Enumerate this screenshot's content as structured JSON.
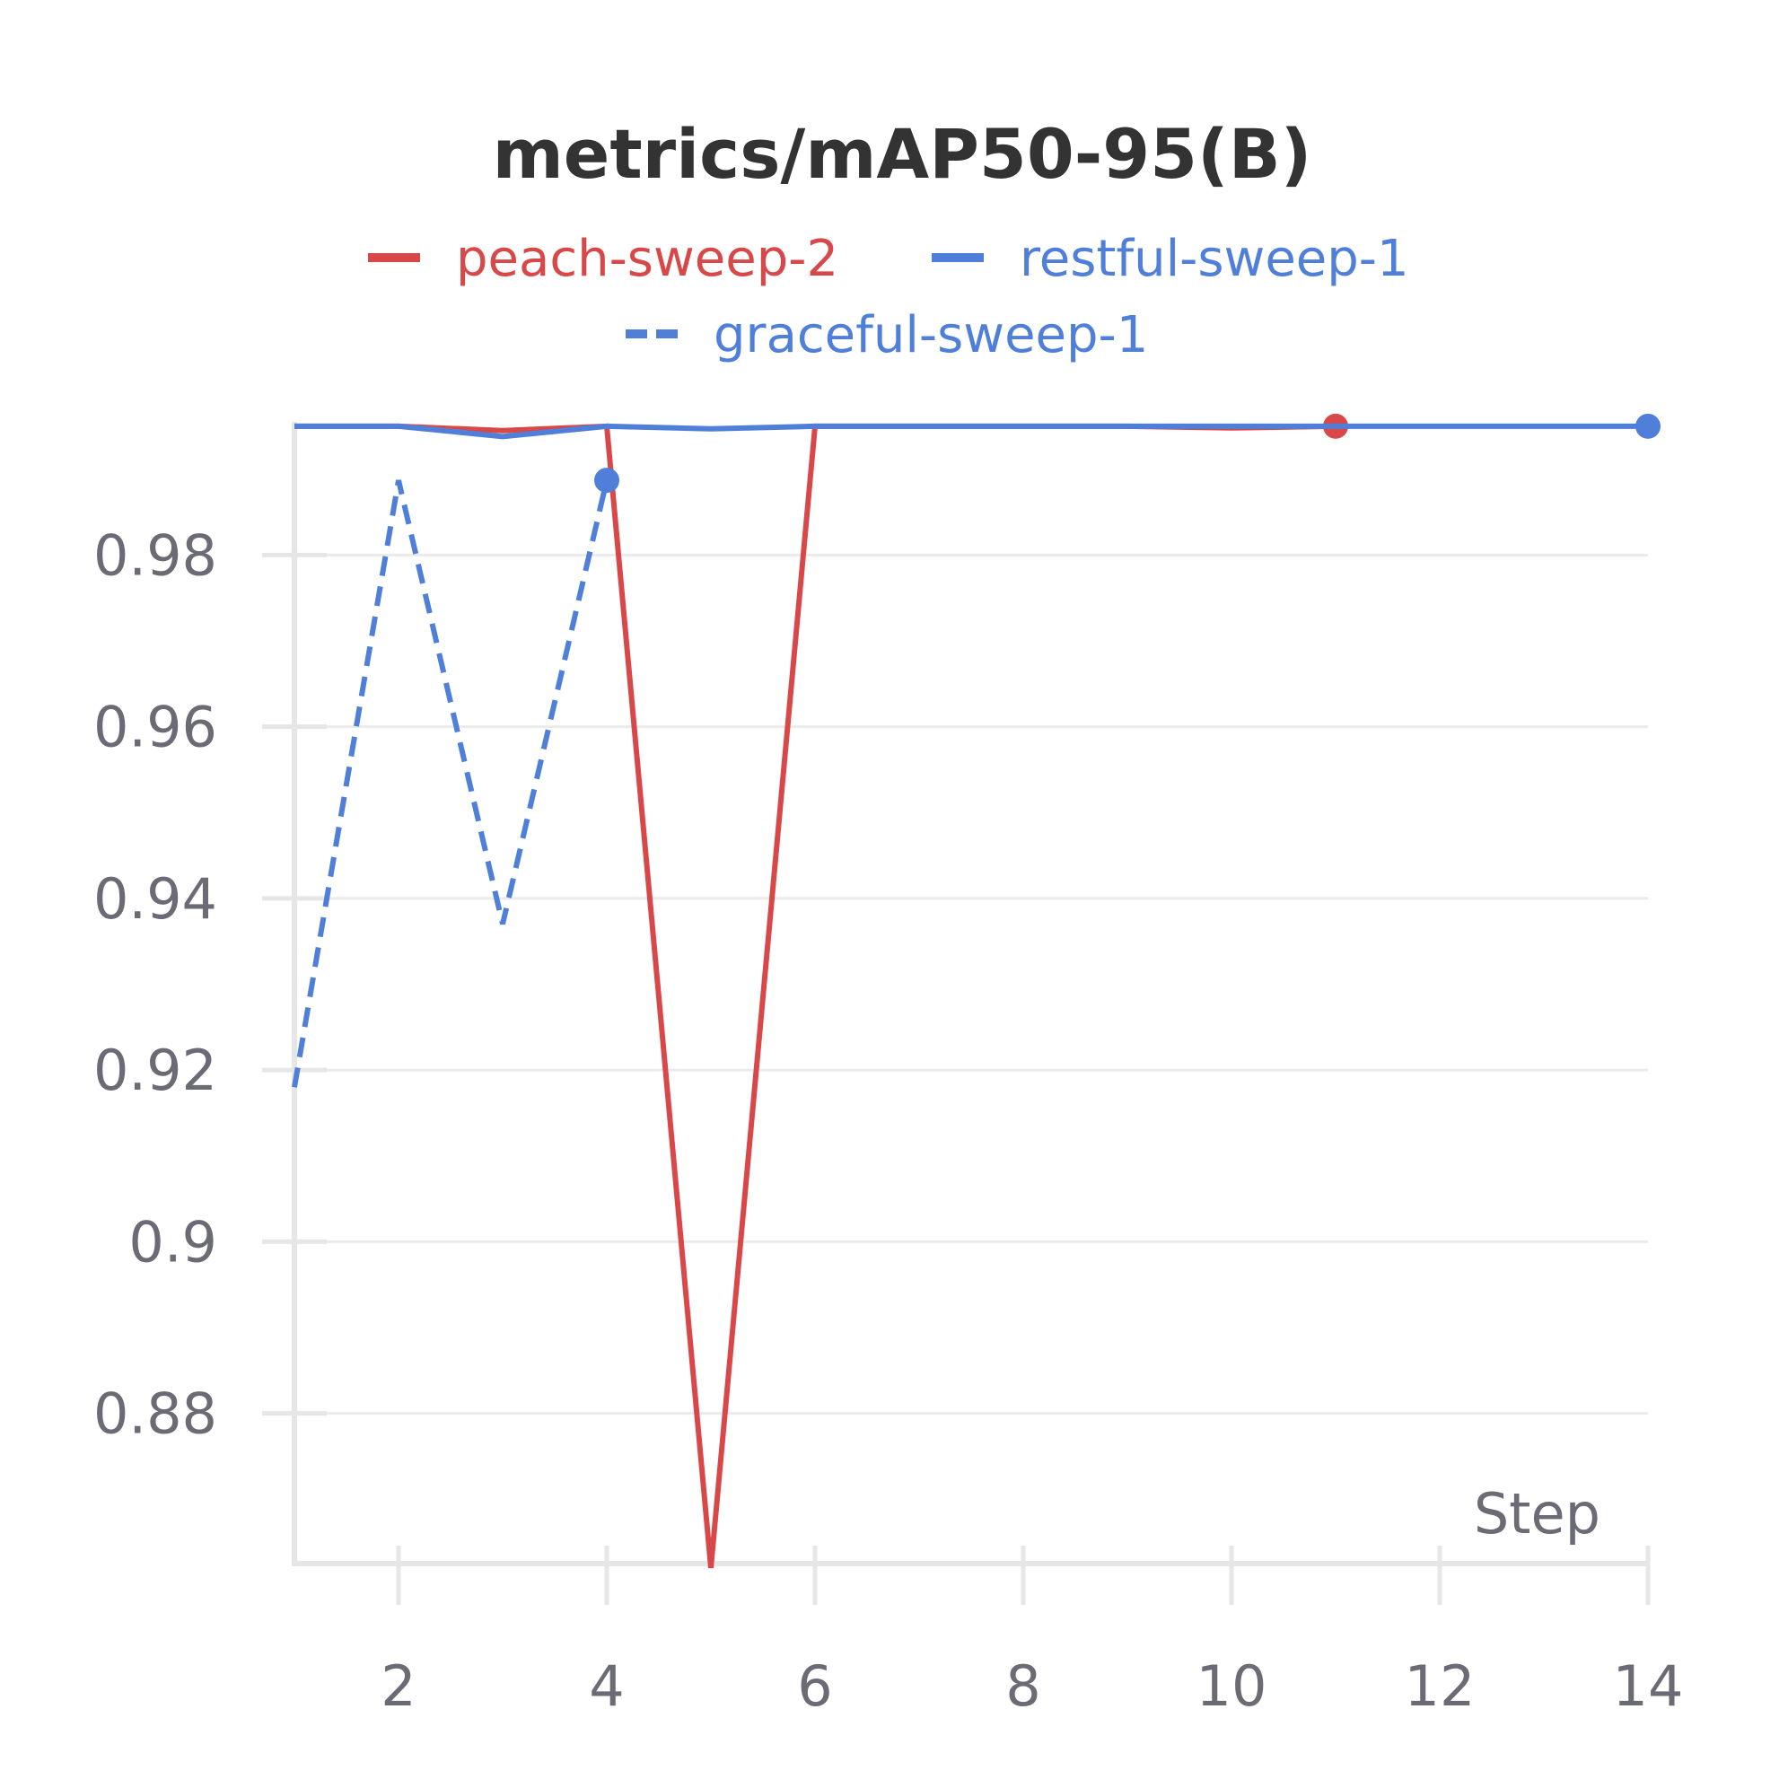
{
  "chart_data": {
    "type": "line",
    "title": "metrics/mAP50-95(B)",
    "xlabel": "Step",
    "ylabel": "",
    "xlim": [
      1,
      14
    ],
    "ylim": [
      0.8625,
      0.9953
    ],
    "x_ticks": [
      2,
      4,
      6,
      8,
      10,
      12,
      14
    ],
    "y_ticks": [
      0.88,
      0.9,
      0.92,
      0.94,
      0.96,
      0.98
    ],
    "y_tick_labels": [
      "0.88",
      "0.9",
      "0.92",
      "0.94",
      "0.96",
      "0.98"
    ],
    "grid": "horizontal",
    "legend_position": "top-center",
    "series": [
      {
        "name": "peach-sweep-2",
        "color": "#d94848",
        "dash": "solid",
        "x": [
          1,
          2,
          3,
          4,
          5,
          6,
          7,
          8,
          9,
          10,
          11
        ],
        "y": [
          0.995,
          0.995,
          0.9945,
          0.995,
          0.862,
          0.995,
          0.995,
          0.995,
          0.995,
          0.9948,
          0.995
        ],
        "end_marker": true
      },
      {
        "name": "restful-sweep-1",
        "color": "#4f7fd9",
        "dash": "solid",
        "x": [
          1,
          2,
          3,
          4,
          5,
          6,
          7,
          8,
          9,
          10,
          11,
          12,
          13,
          14
        ],
        "y": [
          0.995,
          0.995,
          0.9938,
          0.995,
          0.9947,
          0.995,
          0.995,
          0.995,
          0.995,
          0.995,
          0.995,
          0.995,
          0.995,
          0.995
        ],
        "end_marker": true
      },
      {
        "name": "graceful-sweep-1",
        "color": "#4f7fd9",
        "dash": "dashed",
        "x": [
          1,
          2,
          3,
          4
        ],
        "y": [
          0.918,
          0.9887,
          0.937,
          0.9887
        ],
        "end_marker": true
      }
    ]
  }
}
